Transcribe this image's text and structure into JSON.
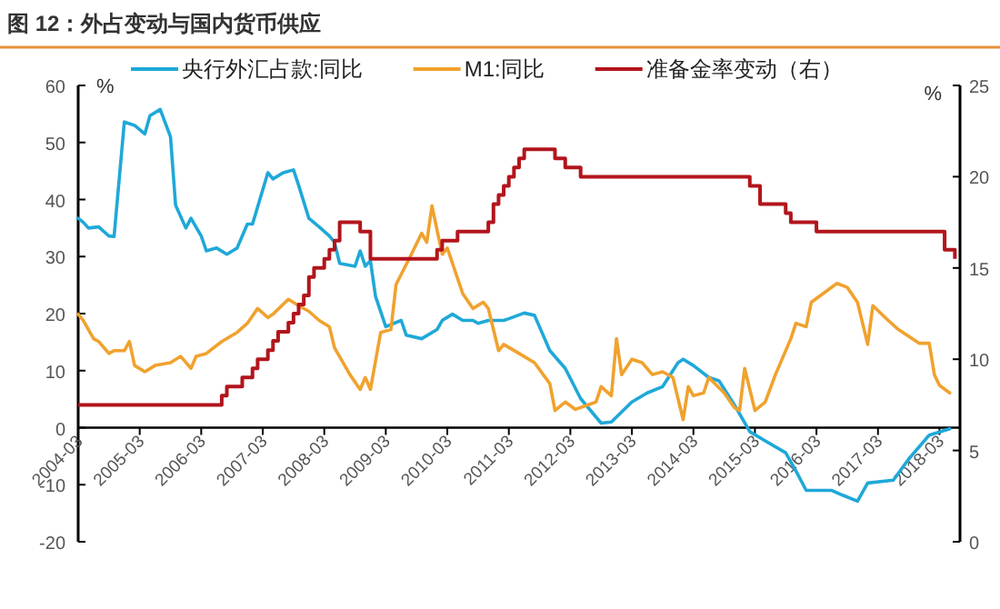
{
  "chart_data": {
    "type": "line",
    "title": "图 12：外占变动与国内货币供应",
    "ylabel": "%",
    "y2label": "%",
    "legend": "top",
    "grid": false,
    "xlim": [
      "2004-03",
      "2018-07"
    ],
    "xticks": [
      {
        "value": "2004-03",
        "label": "2004-03"
      },
      {
        "value": "2005-03",
        "label": "2005-03"
      },
      {
        "value": "2006-03",
        "label": "2006-03"
      },
      {
        "value": "2007-03",
        "label": "2007-03"
      },
      {
        "value": "2008-03",
        "label": "2008-03"
      },
      {
        "value": "2009-03",
        "label": "2009-03"
      },
      {
        "value": "2010-03",
        "label": "2010-03"
      },
      {
        "value": "2011-03",
        "label": "2011-03"
      },
      {
        "value": "2012-03",
        "label": "2012-03"
      },
      {
        "value": "2013-03",
        "label": "2013-03"
      },
      {
        "value": "2014-03",
        "label": "2014-03"
      },
      {
        "value": "2015-03",
        "label": "2015-03"
      },
      {
        "value": "2016-03",
        "label": "2016-03"
      },
      {
        "value": "2017-03",
        "label": "2017-03"
      },
      {
        "value": "2018-03",
        "label": "2018-03"
      }
    ],
    "ylim": [
      -20,
      60
    ],
    "yticks": [
      -20,
      -10,
      0,
      10,
      20,
      30,
      40,
      50,
      60
    ],
    "y2lim": [
      0,
      25
    ],
    "y2ticks": [
      0,
      5,
      10,
      15,
      20,
      25
    ],
    "series": [
      {
        "name": "央行外汇占款:同比",
        "color": "#1fa8d8",
        "x": [
          "2004-03",
          "2004-04",
          "2004-05",
          "2004-07",
          "2004-09",
          "2004-10",
          "2004-12",
          "2005-02",
          "2005-04",
          "2005-05",
          "2005-07",
          "2005-09",
          "2005-10",
          "2005-12",
          "2006-01",
          "2006-03",
          "2006-04",
          "2006-06",
          "2006-08",
          "2006-10",
          "2006-12",
          "2007-01",
          "2007-04",
          "2007-05",
          "2007-07",
          "2007-09",
          "2007-10",
          "2007-12",
          "2008-02",
          "2008-04",
          "2008-05",
          "2008-06",
          "2008-09",
          "2008-10",
          "2008-11",
          "2008-12",
          "2009-01",
          "2009-03",
          "2009-06",
          "2009-07",
          "2009-10",
          "2010-01",
          "2010-02",
          "2010-04",
          "2010-06",
          "2010-08",
          "2010-09",
          "2010-11",
          "2011-02",
          "2011-03",
          "2011-06",
          "2011-08",
          "2011-11",
          "2012-02",
          "2012-05",
          "2012-09",
          "2012-11",
          "2013-03",
          "2013-06",
          "2013-09",
          "2013-12",
          "2014-01",
          "2014-03",
          "2014-06",
          "2014-08",
          "2014-11",
          "2015-02",
          "2015-05",
          "2015-09",
          "2015-11",
          "2016-01",
          "2016-06",
          "2016-08",
          "2016-11",
          "2017-01",
          "2017-06",
          "2017-09",
          "2018-01",
          "2018-05"
        ],
        "values": [
          36.7,
          36,
          35,
          35.2,
          33.6,
          33.5,
          53.6,
          53,
          51.5,
          54.7,
          55.8,
          51,
          39,
          35,
          36.7,
          33.6,
          31,
          31.5,
          30.4,
          31.5,
          35.7,
          35.7,
          44.7,
          43.6,
          44.7,
          45.2,
          42.5,
          36.7,
          35.2,
          33.6,
          32.5,
          28.8,
          28.3,
          31,
          28.3,
          29.3,
          23,
          17.7,
          18.8,
          16.2,
          15.6,
          17.2,
          18.8,
          19.9,
          18.8,
          18.8,
          18.3,
          18.8,
          18.8,
          19.1,
          20.1,
          19.7,
          13.5,
          10.4,
          5.1,
          0.8,
          1,
          4.5,
          6.1,
          7.2,
          11.4,
          12,
          10.9,
          8.8,
          8.2,
          4,
          -0.7,
          -2.3,
          -4.4,
          -7.6,
          -11,
          -11,
          -11.8,
          -12.9,
          -9.7,
          -9.2,
          -5.5,
          -1.3,
          -0.2
        ]
      },
      {
        "name": "M1:同比",
        "color": "#f0a22e",
        "x": [
          "2004-03",
          "2004-04",
          "2004-06",
          "2004-07",
          "2004-09",
          "2004-10",
          "2004-12",
          "2005-01",
          "2005-02",
          "2005-04",
          "2005-06",
          "2005-09",
          "2005-11",
          "2006-01",
          "2006-02",
          "2006-04",
          "2006-07",
          "2006-10",
          "2006-12",
          "2007-02",
          "2007-04",
          "2007-05",
          "2007-08",
          "2007-10",
          "2007-12",
          "2008-02",
          "2008-04",
          "2008-05",
          "2008-08",
          "2008-10",
          "2008-11",
          "2008-12",
          "2009-02",
          "2009-04",
          "2009-05",
          "2009-08",
          "2009-10",
          "2009-11",
          "2009-12",
          "2010-02",
          "2010-03",
          "2010-06",
          "2010-08",
          "2010-10",
          "2010-11",
          "2011-01",
          "2011-02",
          "2011-05",
          "2011-08",
          "2011-11",
          "2011-12",
          "2012-02",
          "2012-04",
          "2012-08",
          "2012-09",
          "2012-11",
          "2012-12",
          "2013-01",
          "2013-03",
          "2013-05",
          "2013-07",
          "2013-09",
          "2013-11",
          "2014-01",
          "2014-02",
          "2014-03",
          "2014-05",
          "2014-06",
          "2014-09",
          "2014-11",
          "2014-12",
          "2015-01",
          "2015-03",
          "2015-05",
          "2015-07",
          "2015-10",
          "2015-11",
          "2016-01",
          "2016-02",
          "2016-07",
          "2016-09",
          "2016-11",
          "2017-01",
          "2017-02",
          "2017-05",
          "2017-07",
          "2017-11",
          "2018-01",
          "2018-02",
          "2018-03",
          "2018-05"
        ],
        "values": [
          19.9,
          18.8,
          15.6,
          15.1,
          13,
          13.5,
          13.5,
          15.1,
          10.9,
          9.8,
          10.9,
          11.4,
          12.5,
          10.4,
          12.5,
          13,
          15.1,
          16.7,
          18.3,
          20.9,
          19.3,
          19.9,
          22.5,
          21.4,
          20.4,
          18.8,
          17.7,
          14,
          9.3,
          6.7,
          8.8,
          6.7,
          16.7,
          17.2,
          25.1,
          30.4,
          34.1,
          32.5,
          38.9,
          30.4,
          31.5,
          23.5,
          20.9,
          22,
          20.9,
          13.5,
          14.6,
          13,
          11.4,
          7.7,
          3,
          4.5,
          3.2,
          4.5,
          7.2,
          5.6,
          15.6,
          9.3,
          12,
          11.4,
          9.3,
          9.8,
          8.8,
          1.4,
          7.2,
          5.6,
          6.1,
          8.8,
          6.1,
          3.5,
          3,
          10.4,
          3,
          4.5,
          9.3,
          15.6,
          18.3,
          17.7,
          22,
          25.3,
          24.6,
          22,
          14.6,
          21.4,
          18.8,
          17.2,
          14.8,
          14.8,
          9.3,
          7.4,
          6.1
        ]
      },
      {
        "name": "准备金率变动（右）",
        "type": "step",
        "axis": "y2",
        "color": "#b2151c",
        "x": [
          "2004-03",
          "2006-07",
          "2006-08",
          "2006-11",
          "2007-01",
          "2007-02",
          "2007-04",
          "2007-05",
          "2007-06",
          "2007-08",
          "2007-09",
          "2007-10",
          "2007-11",
          "2007-12",
          "2008-01",
          "2008-03",
          "2008-04",
          "2008-05",
          "2008-06",
          "2008-10",
          "2008-12",
          "2010-01",
          "2010-02",
          "2010-05",
          "2010-11",
          "2010-12",
          "2011-01",
          "2011-02",
          "2011-03",
          "2011-04",
          "2011-05",
          "2011-06",
          "2011-12",
          "2012-02",
          "2012-05",
          "2015-02",
          "2015-04",
          "2015-09",
          "2015-10",
          "2016-03",
          "2018-04",
          "2018-06"
        ],
        "values": [
          7.5,
          8,
          8.5,
          9,
          9.5,
          10,
          10.5,
          11,
          11.5,
          12,
          12.5,
          13,
          13.5,
          14.5,
          15,
          15.5,
          16,
          16.5,
          17.5,
          17,
          15.5,
          16,
          16.5,
          17,
          17.5,
          18.5,
          19,
          19.5,
          20,
          20.5,
          21,
          21.5,
          21,
          20.5,
          20,
          19.5,
          18.5,
          18,
          17.5,
          17,
          16,
          15.5
        ]
      }
    ]
  }
}
